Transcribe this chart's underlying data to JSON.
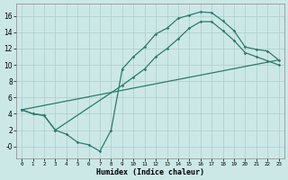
{
  "xlabel": "Humidex (Indice chaleur)",
  "bg_color": "#cce8e6",
  "grid_color": "#aaccca",
  "line_color": "#2d7a6e",
  "xlim": [
    -0.5,
    23.5
  ],
  "ylim": [
    -1.5,
    17.5
  ],
  "xticks": [
    0,
    1,
    2,
    3,
    4,
    5,
    6,
    7,
    8,
    9,
    10,
    11,
    12,
    13,
    14,
    15,
    16,
    17,
    18,
    19,
    20,
    21,
    22,
    23
  ],
  "yticks": [
    0,
    2,
    4,
    6,
    8,
    10,
    12,
    14,
    16
  ],
  "line1_x": [
    0,
    1,
    2,
    3,
    4,
    5,
    6,
    7,
    8,
    9,
    10,
    11,
    12,
    13,
    14,
    15,
    16,
    17,
    18,
    19,
    20,
    21,
    22,
    23
  ],
  "line1_y": [
    4.5,
    4.0,
    3.8,
    2.0,
    1.5,
    0.5,
    0.2,
    -0.6,
    2.0,
    9.5,
    11.0,
    12.2,
    13.8,
    14.5,
    15.7,
    16.1,
    16.5,
    16.4,
    15.4,
    14.2,
    12.2,
    11.9,
    11.7,
    10.6
  ],
  "line2_x": [
    0,
    1,
    2,
    3,
    9,
    10,
    11,
    12,
    13,
    14,
    15,
    16,
    17,
    18,
    19,
    20,
    21,
    22,
    23
  ],
  "line2_y": [
    4.5,
    4.0,
    3.8,
    2.0,
    7.5,
    8.5,
    9.5,
    11.0,
    12.0,
    13.2,
    14.5,
    15.3,
    15.3,
    14.2,
    13.0,
    11.5,
    11.0,
    10.5,
    10.0
  ],
  "line3_x": [
    0,
    23
  ],
  "line3_y": [
    4.5,
    10.6
  ]
}
